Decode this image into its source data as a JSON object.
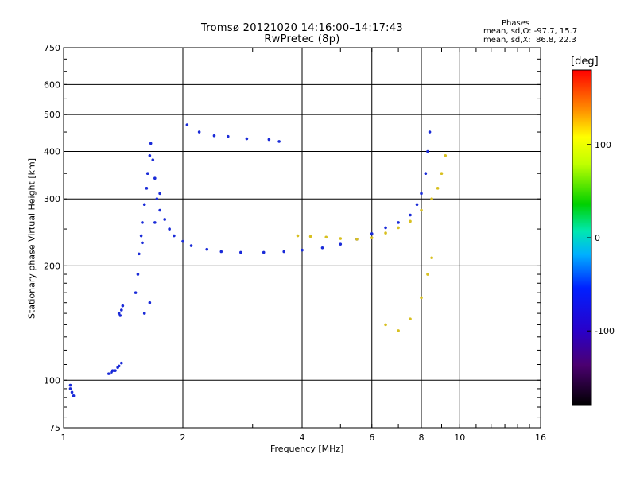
{
  "chart_data": {
    "type": "scatter",
    "title": "Tromsø 20121020 14:16:00–14:17:43",
    "subtitle": "RwPretec (8p)",
    "xlabel": "Frequency [MHz]",
    "ylabel": "Stationary phase Virtual Height [km]",
    "x_scale": "log",
    "y_scale": "log",
    "xlim": [
      1,
      16
    ],
    "ylim": [
      75,
      750
    ],
    "x_ticks": [
      1,
      2,
      4,
      6,
      8,
      10,
      16
    ],
    "x_tick_labels": [
      "1",
      "2",
      "4",
      "6",
      "8",
      "10",
      "16"
    ],
    "y_ticks": [
      75,
      100,
      200,
      300,
      400,
      500,
      600,
      750
    ],
    "y_tick_labels": [
      "75",
      "100",
      "200",
      "300",
      "400",
      "500",
      "600",
      "750"
    ],
    "grid": true,
    "phase_stats": {
      "heading": "Phases",
      "o_line": "mean, sd,O: -97.7, 15.7",
      "x_line": "mean, sd,X:  86.8, 22.3"
    },
    "colorbar": {
      "title": "[deg]",
      "range": [
        -180,
        180
      ],
      "tick_labels": [
        "100",
        "0",
        "-100"
      ],
      "tick_values": [
        100,
        0,
        -100
      ]
    },
    "series": [
      {
        "mode": "O",
        "points": [
          [
            1.04,
            95
          ],
          [
            1.05,
            93
          ],
          [
            1.06,
            91
          ],
          [
            1.04,
            97
          ],
          [
            1.3,
            104
          ],
          [
            1.32,
            105
          ],
          [
            1.33,
            106
          ],
          [
            1.35,
            106
          ],
          [
            1.37,
            108
          ],
          [
            1.38,
            109
          ],
          [
            1.4,
            111
          ],
          [
            1.38,
            150
          ],
          [
            1.4,
            153
          ],
          [
            1.41,
            157
          ],
          [
            1.39,
            148
          ],
          [
            1.52,
            170
          ],
          [
            1.54,
            190
          ],
          [
            1.55,
            215
          ],
          [
            1.57,
            240
          ],
          [
            1.58,
            260
          ],
          [
            1.6,
            290
          ],
          [
            1.62,
            320
          ],
          [
            1.63,
            350
          ],
          [
            1.65,
            390
          ],
          [
            1.66,
            420
          ],
          [
            1.68,
            380
          ],
          [
            1.7,
            340
          ],
          [
            1.72,
            300
          ],
          [
            1.75,
            280
          ],
          [
            1.8,
            265
          ],
          [
            1.85,
            250
          ],
          [
            1.9,
            240
          ],
          [
            2.0,
            232
          ],
          [
            2.1,
            226
          ],
          [
            2.3,
            221
          ],
          [
            2.5,
            218
          ],
          [
            2.8,
            217
          ],
          [
            3.2,
            217
          ],
          [
            3.6,
            218
          ],
          [
            4.0,
            220
          ],
          [
            4.5,
            223
          ],
          [
            5.0,
            228
          ],
          [
            5.5,
            235
          ],
          [
            6.0,
            243
          ],
          [
            6.5,
            252
          ],
          [
            7.0,
            260
          ],
          [
            7.5,
            272
          ],
          [
            7.8,
            290
          ],
          [
            8.0,
            310
          ],
          [
            8.2,
            350
          ],
          [
            8.3,
            400
          ],
          [
            8.4,
            450
          ],
          [
            2.05,
            470
          ],
          [
            2.2,
            450
          ],
          [
            2.4,
            440
          ],
          [
            2.6,
            438
          ],
          [
            2.9,
            432
          ],
          [
            3.3,
            430
          ],
          [
            3.5,
            425
          ],
          [
            1.65,
            160
          ],
          [
            1.6,
            150
          ],
          [
            1.58,
            230
          ],
          [
            1.7,
            260
          ],
          [
            1.75,
            310
          ]
        ]
      },
      {
        "mode": "X",
        "points": [
          [
            3.9,
            240
          ],
          [
            4.2,
            239
          ],
          [
            4.6,
            238
          ],
          [
            5.0,
            236
          ],
          [
            5.5,
            235
          ],
          [
            6.0,
            237
          ],
          [
            6.5,
            244
          ],
          [
            7.0,
            252
          ],
          [
            7.5,
            262
          ],
          [
            8.0,
            280
          ],
          [
            8.5,
            300
          ],
          [
            8.8,
            320
          ],
          [
            9.0,
            350
          ],
          [
            9.2,
            390
          ],
          [
            6.5,
            140
          ],
          [
            7.0,
            135
          ],
          [
            7.5,
            145
          ],
          [
            8.0,
            165
          ],
          [
            8.3,
            190
          ],
          [
            8.5,
            210
          ]
        ]
      }
    ]
  }
}
